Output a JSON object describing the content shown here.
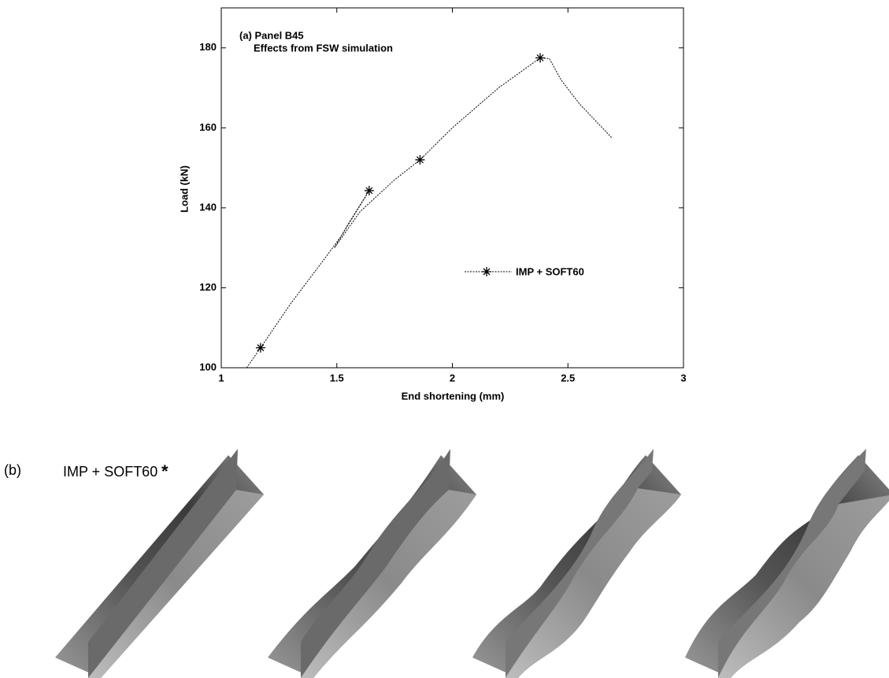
{
  "chart_data": {
    "type": "line",
    "annotations": [
      "(a)  Panel B45",
      "Effects from FSW simulation"
    ],
    "xlabel": "End shortening (mm)",
    "ylabel": "Load (kN)",
    "xlim": [
      1,
      3
    ],
    "ylim": [
      100,
      190
    ],
    "xticks": [
      1,
      1.5,
      2,
      2.5,
      3
    ],
    "yticks": [
      100,
      120,
      140,
      160,
      180
    ],
    "series": [
      {
        "name": "IMP + SOFT60",
        "color": "#000000",
        "x": [
          1.11,
          1.17,
          1.3,
          1.45,
          1.52,
          1.64,
          1.55,
          1.49,
          1.6,
          1.75,
          1.86,
          2.0,
          2.2,
          2.38,
          2.42,
          2.47,
          2.55,
          2.69
        ],
        "values": [
          100,
          105,
          116,
          127.5,
          133,
          144.3,
          136,
          130,
          139,
          147,
          152,
          160,
          170,
          177.5,
          177.3,
          172,
          166,
          157.5
        ]
      }
    ],
    "markers": {
      "x": [
        1.17,
        1.64,
        1.86,
        2.38
      ],
      "values": [
        105,
        144.3,
        152,
        177.5
      ]
    }
  },
  "panel_b": {
    "label": "(b)",
    "title": "IMP + SOFT60",
    "marker": "*"
  }
}
